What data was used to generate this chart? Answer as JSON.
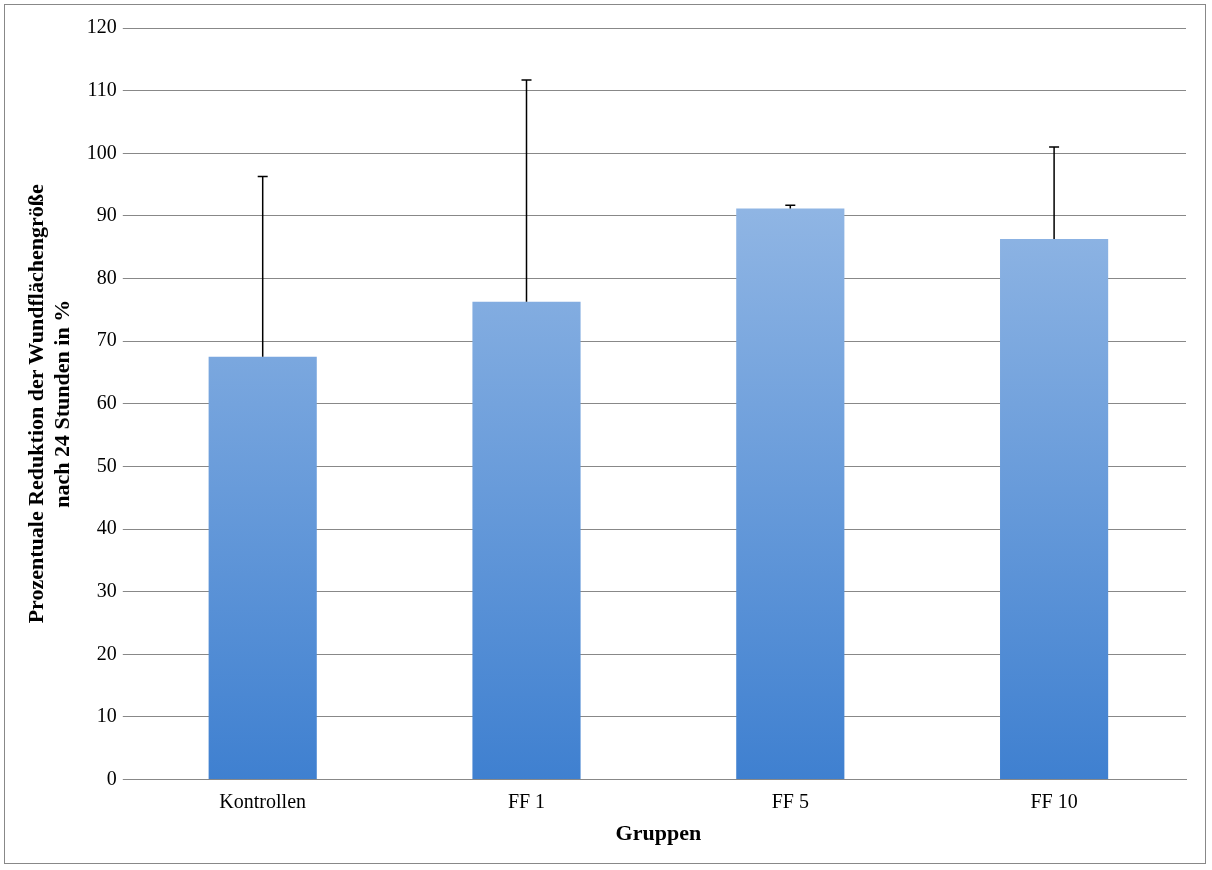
{
  "chart_data": {
    "type": "bar",
    "xlabel": "Gruppen",
    "ylabel": "Prozentuale Reduktion der Wundflächengröße\nnach 24 Stunden in %",
    "categories": [
      "Kontrollen",
      "FF 1",
      "FF 5",
      "FF 10"
    ],
    "values": [
      67.5,
      76.3,
      91.2,
      86.3
    ],
    "errors": [
      [
        67.5,
        96.3
      ],
      [
        76.3,
        111.7
      ],
      [
        91.2,
        91.7
      ],
      [
        86.3,
        101
      ]
    ],
    "color": "#3f80d0",
    "ylim": [
      0,
      120
    ],
    "yticks": [
      0,
      10,
      20,
      30,
      40,
      50,
      60,
      70,
      80,
      90,
      100,
      110,
      120
    ],
    "grid": "y",
    "legend": false
  }
}
